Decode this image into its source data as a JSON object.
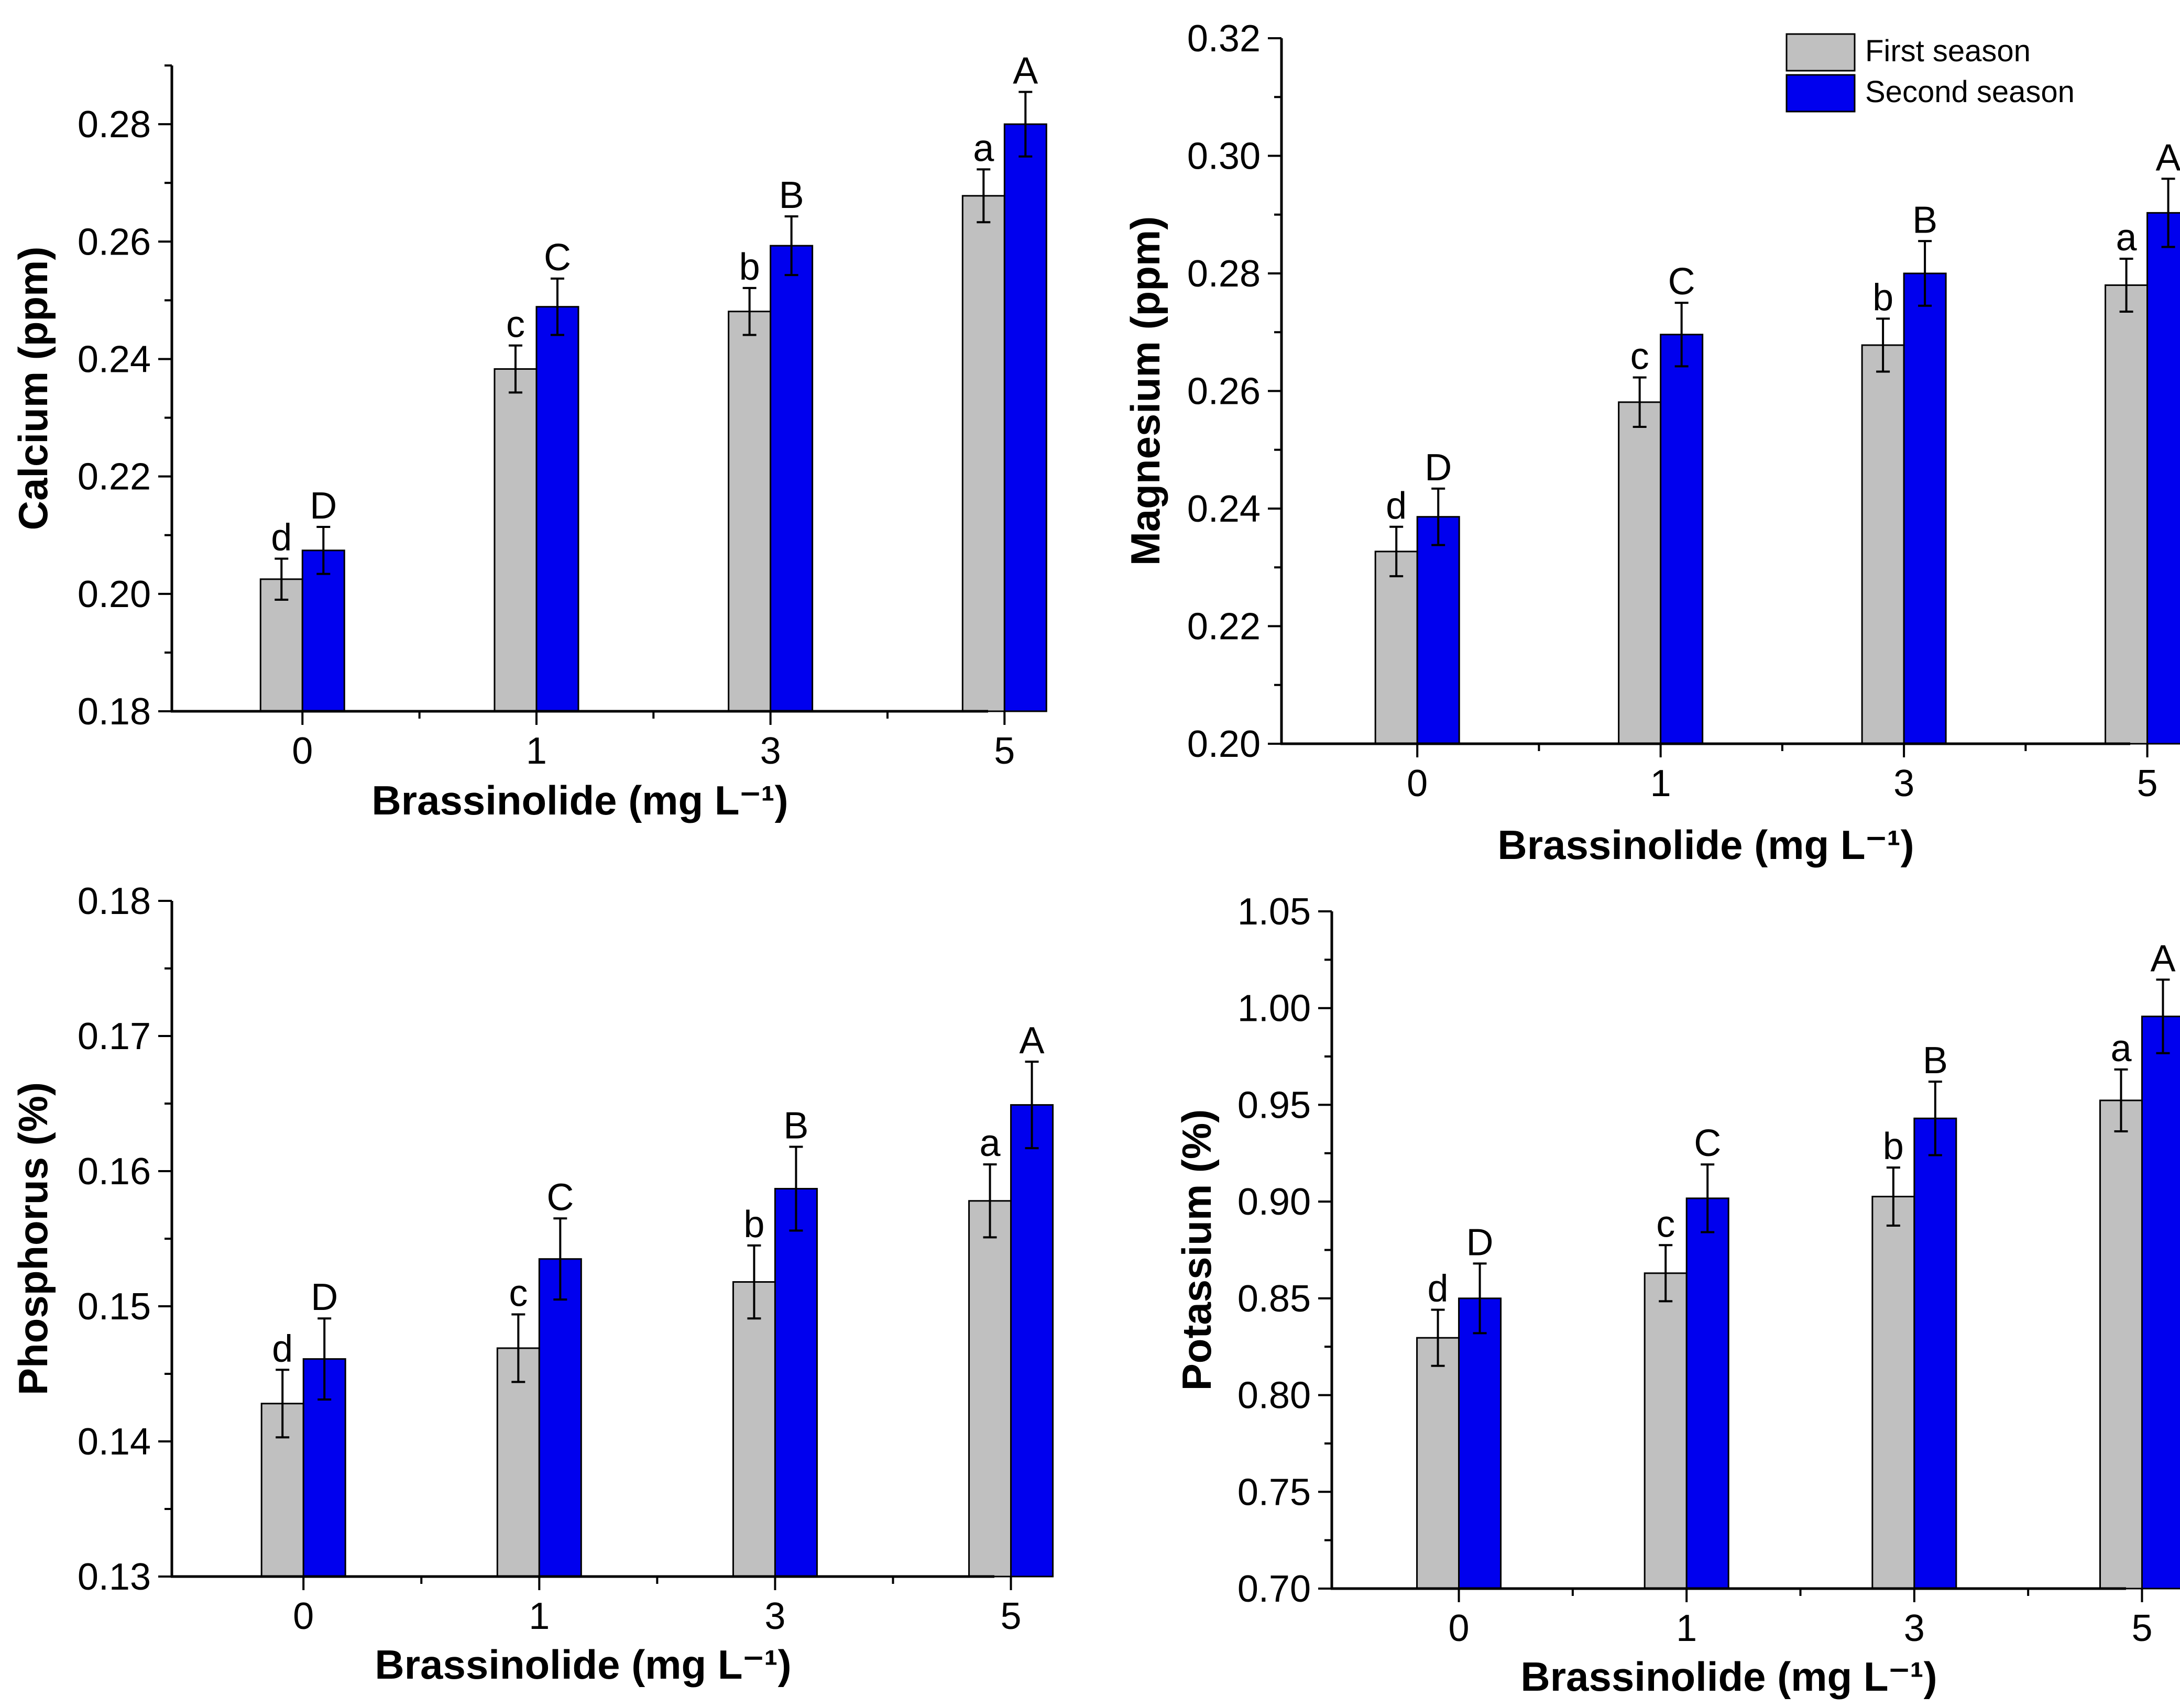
{
  "legend": {
    "series": [
      {
        "name": "First season",
        "color": "#c0c0c0"
      },
      {
        "name": "Second season",
        "color": "#0000ee"
      }
    ]
  },
  "chart_data": [
    {
      "type": "bar",
      "categories": [
        "0",
        "1",
        "3",
        "5"
      ],
      "xlabel": "Brassinolide (mg L⁻¹)",
      "ylabel": "Calcium (ppm)",
      "ylim": [
        0.18,
        0.29
      ],
      "yticks": [
        "0.18",
        "0.20",
        "0.22",
        "0.24",
        "0.26",
        "0.28"
      ],
      "series": [
        {
          "name": "First season",
          "values": [
            0.2025,
            0.2383,
            0.2481,
            0.2678
          ],
          "errors": [
            0.0035,
            0.004,
            0.004,
            0.0045
          ],
          "letters": [
            "d",
            "c",
            "b",
            "a"
          ]
        },
        {
          "name": "Second season",
          "values": [
            0.2074,
            0.2489,
            0.2593,
            0.28
          ],
          "errors": [
            0.004,
            0.0048,
            0.005,
            0.0055
          ],
          "letters": [
            "D",
            "C",
            "B",
            "A"
          ]
        }
      ]
    },
    {
      "type": "bar",
      "categories": [
        "0",
        "1",
        "3",
        "5"
      ],
      "xlabel": "Brassinolide (mg L⁻¹)",
      "ylabel": "Magnesium (ppm)",
      "ylim": [
        0.2,
        0.32
      ],
      "yticks": [
        "0.20",
        "0.22",
        "0.24",
        "0.26",
        "0.28",
        "0.30",
        "0.32"
      ],
      "series": [
        {
          "name": "First season",
          "values": [
            0.2327,
            0.2581,
            0.2678,
            0.278
          ],
          "errors": [
            0.0042,
            0.0042,
            0.0045,
            0.0045
          ],
          "letters": [
            "d",
            "c",
            "b",
            "a"
          ]
        },
        {
          "name": "Second season",
          "values": [
            0.2386,
            0.2696,
            0.28,
            0.2903
          ],
          "errors": [
            0.0048,
            0.0054,
            0.0055,
            0.0058
          ],
          "letters": [
            "D",
            "C",
            "B",
            "A"
          ]
        }
      ]
    },
    {
      "type": "bar",
      "categories": [
        "0",
        "1",
        "3",
        "5"
      ],
      "xlabel": "Brassinolide (mg L⁻¹)",
      "ylabel": "Phosphorus (%)",
      "ylim": [
        0.13,
        0.18
      ],
      "yticks": [
        "0.13",
        "0.14",
        "0.15",
        "0.16",
        "0.17",
        "0.18"
      ],
      "series": [
        {
          "name": "First season",
          "values": [
            0.1428,
            0.1469,
            0.1518,
            0.1578
          ],
          "errors": [
            0.0025,
            0.0025,
            0.0027,
            0.0027
          ],
          "letters": [
            "d",
            "c",
            "b",
            "a"
          ]
        },
        {
          "name": "Second season",
          "values": [
            0.1461,
            0.1535,
            0.1587,
            0.1649
          ],
          "errors": [
            0.003,
            0.003,
            0.0031,
            0.0032
          ],
          "letters": [
            "D",
            "C",
            "B",
            "A"
          ]
        }
      ]
    },
    {
      "type": "bar",
      "categories": [
        "0",
        "1",
        "3",
        "5"
      ],
      "xlabel": "Brassinolide (mg L⁻¹)",
      "ylabel": "Potassium (%)",
      "ylim": [
        0.7,
        1.05
      ],
      "yticks": [
        "0.70",
        "0.75",
        "0.80",
        "0.85",
        "0.90",
        "0.95",
        "1.00",
        "1.05"
      ],
      "series": [
        {
          "name": "First season",
          "values": [
            0.8296,
            0.863,
            0.9026,
            0.9523
          ],
          "errors": [
            0.0145,
            0.0145,
            0.015,
            0.016
          ],
          "letters": [
            "d",
            "c",
            "b",
            "a"
          ]
        },
        {
          "name": "Second season",
          "values": [
            0.85,
            0.9017,
            0.943,
            0.9957
          ],
          "errors": [
            0.018,
            0.0175,
            0.019,
            0.019
          ],
          "letters": [
            "D",
            "C",
            "B",
            "A"
          ]
        }
      ]
    }
  ]
}
